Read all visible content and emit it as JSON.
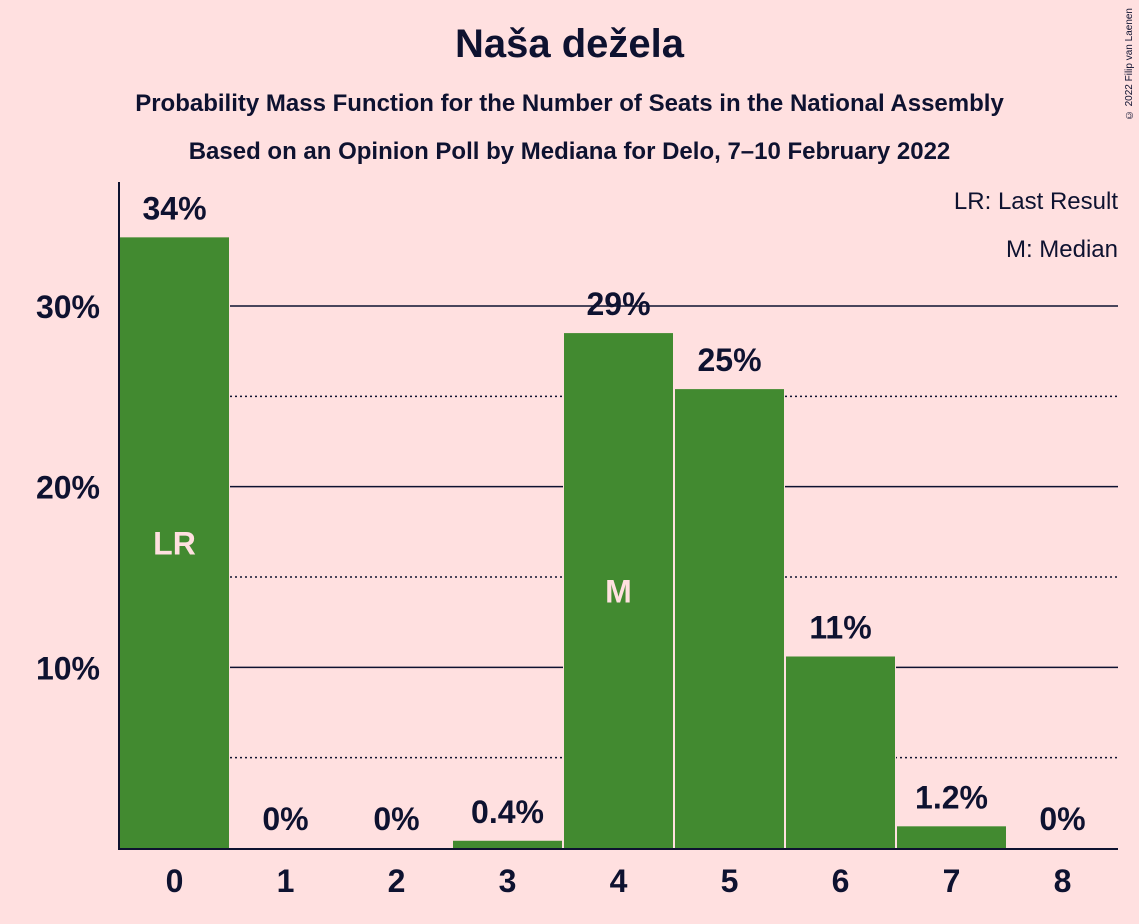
{
  "title": "Naša dežela",
  "subtitle1": "Probability Mass Function for the Number of Seats in the National Assembly",
  "subtitle2": "Based on an Opinion Poll by Mediana for Delo, 7–10 February 2022",
  "copyright": "© 2022 Filip van Laenen",
  "legend": {
    "last_result": "LR: Last Result",
    "median": "M: Median"
  },
  "colors": {
    "background": "#FFE0E0",
    "bar": "#428A30",
    "text": "#0E1230"
  },
  "chart_data": {
    "type": "bar",
    "categories": [
      "0",
      "1",
      "2",
      "3",
      "4",
      "5",
      "6",
      "7",
      "8"
    ],
    "values": [
      33.8,
      0,
      0,
      0.4,
      28.5,
      25.4,
      10.6,
      1.2,
      0
    ],
    "labels": [
      "34%",
      "0%",
      "0%",
      "0.4%",
      "29%",
      "25%",
      "11%",
      "1.2%",
      "0%"
    ],
    "bar_markers": [
      {
        "category": "0",
        "text": "LR"
      },
      {
        "category": "4",
        "text": "M"
      }
    ],
    "ylim": [
      0,
      37
    ],
    "yticks": [
      {
        "value": 10,
        "label": "10%"
      },
      {
        "value": 20,
        "label": "20%"
      },
      {
        "value": 30,
        "label": "30%"
      }
    ],
    "minor_gridlines": [
      5,
      15,
      25
    ],
    "legend_position": "top-right"
  }
}
